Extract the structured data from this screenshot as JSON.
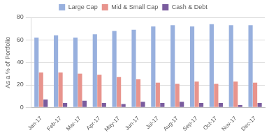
{
  "chart_data": {
    "type": "bar",
    "y_label": "As a % of Portfolio",
    "categories": [
      "Jan-17",
      "Feb-17",
      "Mar-17",
      "Apr-17",
      "May-17",
      "Jun-17",
      "Jul-17",
      "Aug-17",
      "Sep-17",
      "Oct-17",
      "Nov-17",
      "Dec-17"
    ],
    "series": [
      {
        "name": "Large Cap",
        "color": "#98B0DE",
        "values": [
          62,
          64,
          62,
          65,
          68,
          69,
          72,
          73,
          72,
          74,
          73,
          73
        ]
      },
      {
        "name": "Mid & Small Cap",
        "color": "#E8948D",
        "values": [
          31,
          31,
          30,
          29,
          27,
          25,
          22,
          21,
          23,
          21,
          23,
          22
        ]
      },
      {
        "name": "Cash & Debt",
        "color": "#7A5C9E",
        "values": [
          7,
          4,
          6,
          4,
          3,
          5,
          4,
          5,
          4,
          4,
          2,
          4
        ]
      }
    ],
    "ylim": [
      0,
      80
    ],
    "yticks": [
      0,
      20,
      40,
      60,
      80
    ],
    "grid": true,
    "legend": "top"
  }
}
